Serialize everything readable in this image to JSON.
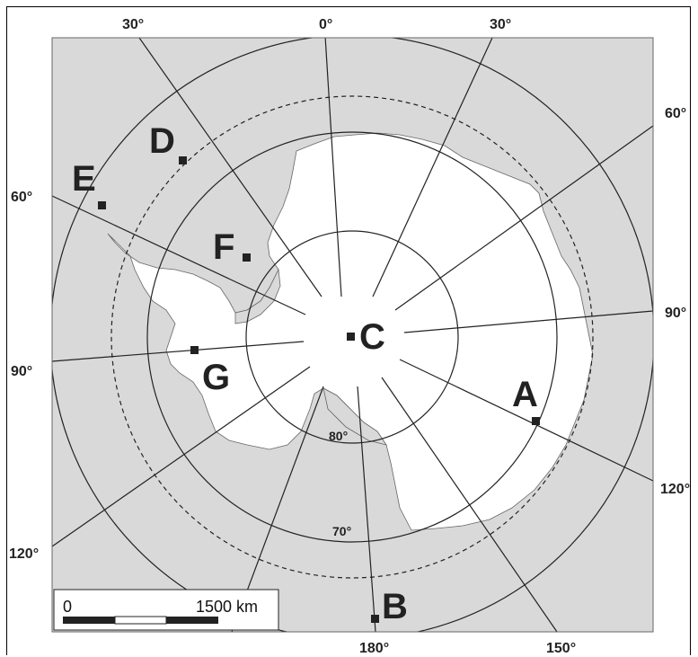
{
  "map": {
    "longitude_labels": {
      "top_30_left": "30°",
      "top_0": "0°",
      "top_30_right": "30°",
      "right_60": "60°",
      "right_90": "90°",
      "right_120": "120°",
      "bottom_150": "150°",
      "bottom_180": "180°",
      "left_60": "60°",
      "left_90": "90°",
      "left_120": "120°"
    },
    "latitude_labels": {
      "lat_80": "80°",
      "lat_70": "70°"
    },
    "points": {
      "A": "A",
      "B": "B",
      "C": "C",
      "D": "D",
      "E": "E",
      "F": "F",
      "G": "G"
    },
    "scale_bar": {
      "start": "0",
      "end": "1500 km"
    },
    "colors": {
      "ocean": "#d9d9d9",
      "land": "#ffffff",
      "ice_shelf": "#d9d9d9",
      "lines": "#222222"
    }
  }
}
